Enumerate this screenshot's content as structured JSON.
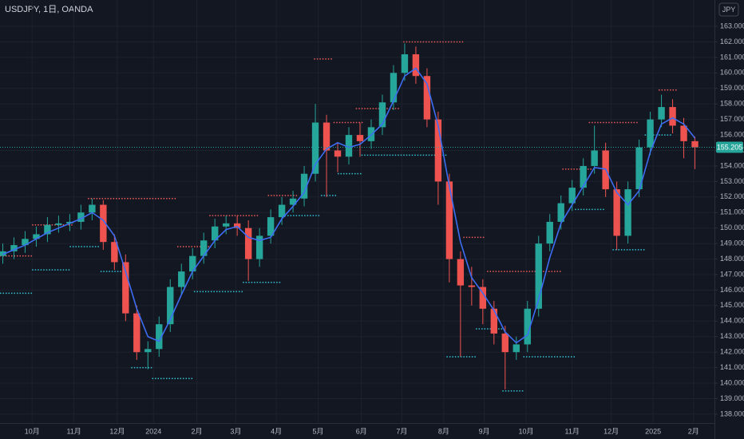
{
  "chart_data": {
    "type": "candlestick",
    "title": "USDJPY, 1日, OANDA",
    "currency_button": "JPY",
    "last_price": 155.205,
    "up_color": "#26a69a",
    "down_color": "#ef5350",
    "ma_color": "#3d6df2",
    "resistance_color": "#f05a5a",
    "support_color": "#33c3d6",
    "grid": true,
    "xlim": [
      0,
      512
    ],
    "ylim": [
      137.43,
      164.7
    ],
    "xticks": [
      {
        "value": 23,
        "label": "10月"
      },
      {
        "value": 53,
        "label": "11月"
      },
      {
        "value": 84,
        "label": "12月"
      },
      {
        "value": 110,
        "label": "2024"
      },
      {
        "value": 141,
        "label": "2月"
      },
      {
        "value": 169,
        "label": "3月"
      },
      {
        "value": 198,
        "label": "4月"
      },
      {
        "value": 228,
        "label": "5月"
      },
      {
        "value": 259,
        "label": "6月"
      },
      {
        "value": 288,
        "label": "7月"
      },
      {
        "value": 318,
        "label": "8月"
      },
      {
        "value": 347,
        "label": "9月"
      },
      {
        "value": 377,
        "label": "10月"
      },
      {
        "value": 410,
        "label": "11月"
      },
      {
        "value": 438,
        "label": "12月"
      },
      {
        "value": 468,
        "label": "2025"
      },
      {
        "value": 497,
        "label": "2月"
      }
    ],
    "yticks": [
      {
        "value": 138,
        "label": "138.000"
      },
      {
        "value": 139,
        "label": "139.000"
      },
      {
        "value": 140,
        "label": "140.000"
      },
      {
        "value": 141,
        "label": "141.000"
      },
      {
        "value": 142,
        "label": "142.000"
      },
      {
        "value": 143,
        "label": "143.000"
      },
      {
        "value": 144,
        "label": "144.000"
      },
      {
        "value": 145,
        "label": "145.000"
      },
      {
        "value": 146,
        "label": "146.000"
      },
      {
        "value": 147,
        "label": "147.000"
      },
      {
        "value": 148,
        "label": "148.000"
      },
      {
        "value": 149,
        "label": "149.000"
      },
      {
        "value": 150,
        "label": "150.000"
      },
      {
        "value": 151,
        "label": "151.000"
      },
      {
        "value": 152,
        "label": "152.000"
      },
      {
        "value": 153,
        "label": "153.000"
      },
      {
        "value": 154,
        "label": "154.000"
      },
      {
        "value": 155,
        "label": "155.000"
      },
      {
        "value": 156,
        "label": "156.000"
      },
      {
        "value": 157,
        "label": "157.000"
      },
      {
        "value": 158,
        "label": "158.000"
      },
      {
        "value": 159,
        "label": "159.000"
      },
      {
        "value": 160,
        "label": "160.000"
      },
      {
        "value": 161,
        "label": "161.000"
      },
      {
        "value": 162,
        "label": "162.000"
      },
      {
        "value": 163,
        "label": "163.000"
      }
    ],
    "x": [
      2,
      10,
      18,
      26,
      34,
      42,
      50,
      58,
      66,
      74,
      82,
      90,
      98,
      106,
      114,
      122,
      130,
      138,
      146,
      154,
      162,
      170,
      178,
      186,
      194,
      202,
      210,
      218,
      226,
      234,
      242,
      250,
      258,
      266,
      274,
      282,
      290,
      298,
      306,
      314,
      322,
      330,
      338,
      346,
      354,
      362,
      370,
      378,
      386,
      394,
      402,
      410,
      418,
      426,
      434,
      442,
      450,
      458,
      466,
      474,
      482,
      490,
      498
    ],
    "open": [
      148.2,
      148.5,
      148.9,
      149.3,
      149.6,
      150.2,
      150.3,
      150.4,
      151.0,
      151.5,
      149.1,
      147.8,
      144.5,
      142.0,
      142.2,
      143.8,
      146.2,
      147.2,
      148.2,
      149.2,
      150.1,
      150.3,
      150.0,
      148.0,
      149.5,
      150.7,
      151.5,
      151.9,
      153.5,
      156.8,
      155.0,
      154.6,
      156.0,
      155.6,
      156.5,
      158.1,
      160.0,
      161.2,
      159.8,
      157.0,
      153.0,
      148.0,
      146.3,
      146.2,
      144.8,
      143.2,
      142.0,
      142.5,
      144.8,
      149.0,
      150.4,
      151.6,
      152.6,
      154.0,
      155.0,
      152.5,
      149.5,
      152.5,
      155.2,
      157.0,
      157.8,
      156.6,
      155.6
    ],
    "high": [
      149.0,
      149.4,
      149.8,
      150.1,
      150.7,
      150.8,
      150.9,
      151.5,
      151.9,
      151.8,
      149.6,
      148.3,
      145.0,
      142.7,
      144.3,
      146.7,
      147.7,
      148.7,
      149.7,
      150.6,
      150.8,
      150.8,
      150.5,
      150.0,
      151.2,
      152.0,
      152.4,
      154.0,
      158.0,
      157.3,
      155.5,
      156.5,
      156.8,
      157.0,
      158.6,
      160.5,
      161.9,
      161.7,
      160.3,
      157.5,
      153.5,
      148.5,
      147.5,
      146.7,
      145.3,
      143.7,
      143.0,
      145.3,
      149.5,
      150.9,
      152.1,
      153.1,
      154.5,
      156.6,
      155.5,
      153.0,
      153.0,
      155.7,
      157.5,
      158.6,
      158.3,
      157.1,
      155.9
    ],
    "low": [
      147.7,
      148.0,
      148.4,
      148.8,
      149.1,
      149.7,
      149.8,
      149.9,
      150.5,
      148.6,
      147.3,
      144.0,
      141.5,
      140.9,
      141.7,
      143.3,
      145.7,
      146.7,
      147.7,
      148.7,
      149.6,
      149.5,
      146.6,
      147.5,
      149.0,
      150.2,
      151.0,
      151.4,
      153.0,
      152.0,
      153.6,
      154.1,
      154.6,
      155.1,
      156.0,
      157.6,
      159.5,
      159.3,
      156.5,
      151.5,
      146.5,
      141.7,
      145.0,
      143.8,
      142.5,
      139.6,
      141.5,
      142.0,
      144.3,
      148.5,
      149.9,
      151.1,
      152.1,
      153.5,
      152.0,
      148.6,
      149.0,
      152.0,
      154.7,
      156.5,
      156.1,
      154.5,
      153.8
    ],
    "close": [
      148.5,
      148.9,
      149.3,
      149.6,
      150.2,
      150.3,
      150.4,
      151.0,
      151.5,
      149.1,
      147.8,
      144.5,
      142.0,
      142.2,
      143.8,
      146.2,
      147.2,
      148.2,
      149.2,
      150.1,
      150.3,
      150.0,
      148.0,
      149.5,
      150.7,
      151.5,
      151.9,
      153.5,
      156.8,
      155.0,
      154.6,
      156.0,
      155.6,
      156.5,
      158.1,
      160.0,
      161.2,
      159.8,
      157.0,
      153.0,
      148.0,
      146.3,
      146.2,
      144.8,
      143.2,
      142.0,
      142.5,
      144.8,
      149.0,
      150.4,
      151.6,
      152.6,
      154.0,
      155.0,
      152.5,
      149.5,
      152.5,
      155.2,
      157.0,
      157.8,
      156.6,
      155.6,
      155.2
    ],
    "ma": [
      148.3,
      148.6,
      148.9,
      149.3,
      149.7,
      150.0,
      150.3,
      150.6,
      151.0,
      150.5,
      149.5,
      147.2,
      144.8,
      143.0,
      142.7,
      144.1,
      145.7,
      147.2,
      148.2,
      149.2,
      149.9,
      150.1,
      149.4,
      149.2,
      149.4,
      150.6,
      151.4,
      152.3,
      154.1,
      155.1,
      155.5,
      155.2,
      155.4,
      156.0,
      156.7,
      158.2,
      159.8,
      160.3,
      159.3,
      156.6,
      152.7,
      149.1,
      146.8,
      145.8,
      144.7,
      143.3,
      142.6,
      143.1,
      145.4,
      148.1,
      150.3,
      151.5,
      152.7,
      153.9,
      153.8,
      152.3,
      151.5,
      152.4,
      154.9,
      156.7,
      157.1,
      156.7,
      155.8
    ],
    "resistance": [
      {
        "from": 0,
        "to": 23,
        "value": 148.2
      },
      {
        "from": 23,
        "to": 53,
        "value": 150.2
      },
      {
        "from": 63,
        "to": 127,
        "value": 151.9
      },
      {
        "from": 127,
        "to": 150,
        "value": 148.8
      },
      {
        "from": 150,
        "to": 186,
        "value": 150.8
      },
      {
        "from": 192,
        "to": 213,
        "value": 152.1
      },
      {
        "from": 225,
        "to": 239,
        "value": 160.9
      },
      {
        "from": 239,
        "to": 260,
        "value": 156.8
      },
      {
        "from": 255,
        "to": 286,
        "value": 157.7
      },
      {
        "from": 289,
        "to": 332,
        "value": 162.0
      },
      {
        "from": 332,
        "to": 347,
        "value": 149.4
      },
      {
        "from": 349,
        "to": 402,
        "value": 147.2
      },
      {
        "from": 403,
        "to": 426,
        "value": 153.8
      },
      {
        "from": 422,
        "to": 458,
        "value": 156.8
      },
      {
        "from": 472,
        "to": 486,
        "value": 158.9
      }
    ],
    "support": [
      {
        "from": 0,
        "to": 24,
        "value": 145.8
      },
      {
        "from": 23,
        "to": 50,
        "value": 147.3
      },
      {
        "from": 50,
        "to": 72,
        "value": 148.8
      },
      {
        "from": 72,
        "to": 92,
        "value": 147.2
      },
      {
        "from": 94,
        "to": 109,
        "value": 141.0
      },
      {
        "from": 109,
        "to": 139,
        "value": 140.3
      },
      {
        "from": 139,
        "to": 174,
        "value": 145.9
      },
      {
        "from": 174,
        "to": 202,
        "value": 146.5
      },
      {
        "from": 202,
        "to": 230,
        "value": 150.8
      },
      {
        "from": 230,
        "to": 242,
        "value": 152.1
      },
      {
        "from": 242,
        "to": 259,
        "value": 153.5
      },
      {
        "from": 259,
        "to": 320,
        "value": 154.7
      },
      {
        "from": 320,
        "to": 341,
        "value": 141.7
      },
      {
        "from": 341,
        "to": 360,
        "value": 143.5
      },
      {
        "from": 360,
        "to": 375,
        "value": 139.5
      },
      {
        "from": 375,
        "to": 412,
        "value": 141.7
      },
      {
        "from": 412,
        "to": 433,
        "value": 151.2
      },
      {
        "from": 439,
        "to": 463,
        "value": 148.6
      },
      {
        "from": 462,
        "to": 481,
        "value": 156.0
      }
    ]
  }
}
